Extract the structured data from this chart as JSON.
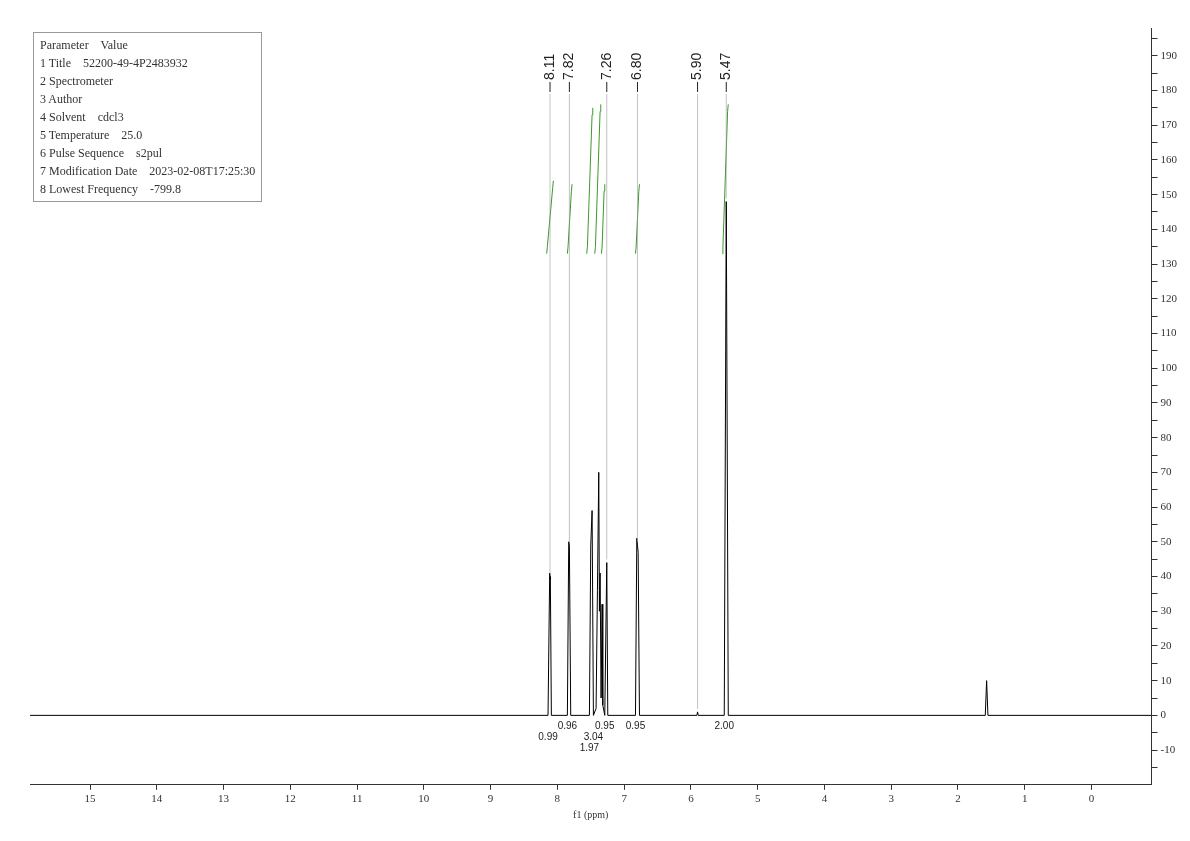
{
  "chart_data": {
    "type": "line",
    "xlabel": "f1 (ppm)",
    "xlim": [
      15.9,
      -0.9
    ],
    "ylim": [
      -20,
      198
    ],
    "xticks": [
      15,
      14,
      13,
      12,
      11,
      10,
      9,
      8,
      7,
      6,
      5,
      4,
      3,
      2,
      1,
      0
    ],
    "yticks": [
      {
        "value": -15,
        "label": null
      },
      -10,
      {
        "value": -5,
        "label": null
      },
      0,
      {
        "value": 5,
        "label": null
      },
      10,
      {
        "value": 15,
        "label": null
      },
      20,
      {
        "value": 25,
        "label": null
      },
      30,
      {
        "value": 35,
        "label": null
      },
      40,
      {
        "value": 45,
        "label": null
      },
      50,
      {
        "value": 55,
        "label": null
      },
      60,
      {
        "value": 65,
        "label": null
      },
      70,
      {
        "value": 75,
        "label": null
      },
      80,
      {
        "value": 85,
        "label": null
      },
      90,
      {
        "value": 95,
        "label": null
      },
      100,
      {
        "value": 105,
        "label": null
      },
      110,
      {
        "value": 115,
        "label": null
      },
      120,
      {
        "value": 125,
        "label": null
      },
      130,
      {
        "value": 135,
        "label": null
      },
      140,
      {
        "value": 145,
        "label": null
      },
      150,
      {
        "value": 155,
        "label": null
      },
      160,
      {
        "value": 165,
        "label": null
      },
      170,
      {
        "value": 175,
        "label": null
      },
      180,
      {
        "value": 185,
        "label": null
      },
      190,
      {
        "value": 195,
        "label": null
      }
    ],
    "grid": false,
    "legend": false,
    "marker": "none",
    "line_style": "solid",
    "series": [
      {
        "color": "#000000",
        "x": [
          15.9,
          8.14,
          8.115,
          8.11,
          8.105,
          8.09,
          7.85,
          7.83,
          7.82,
          7.8,
          7.52,
          7.5,
          7.48,
          7.46,
          7.42,
          7.4,
          7.38,
          7.37,
          7.36,
          7.345,
          7.33,
          7.32,
          7.29,
          7.26,
          7.245,
          6.83,
          6.81,
          6.8,
          6.79,
          6.77,
          5.91,
          5.9,
          5.89,
          5.5,
          5.47,
          5.44,
          1.59,
          1.57,
          1.55,
          -0.9
        ],
        "values": [
          0,
          0,
          41,
          40,
          39,
          0,
          0,
          50,
          49,
          0,
          0,
          49,
          59,
          0,
          2,
          36,
          70,
          30,
          41,
          5,
          32,
          3,
          0,
          44,
          0,
          0,
          51,
          49,
          47,
          0,
          0,
          1,
          0,
          0,
          148,
          0,
          0,
          10,
          0,
          0
        ]
      },
      {
        "color": "#3a9a2a",
        "x": [
          8.16,
          8.15,
          8.07,
          8.06,
          8.0,
          7.85,
          7.84,
          7.79,
          7.78,
          7.7,
          7.56,
          7.55,
          7.48,
          7.47,
          7.45,
          7.44,
          7.43,
          7.36,
          7.35,
          7.345,
          7.34,
          7.33,
          7.3,
          7.29,
          7.0,
          6.83,
          6.82,
          6.78,
          6.77,
          6.0,
          5.53,
          5.52,
          5.45,
          5.44
        ],
        "values": [
          133,
          135,
          152,
          154,
          null,
          133,
          135,
          151,
          153,
          null,
          133,
          135,
          173,
          175,
          null,
          133,
          135,
          174,
          176,
          null,
          133,
          135,
          151,
          153,
          null,
          133,
          135,
          151,
          153,
          null,
          133,
          135,
          174,
          176
        ]
      }
    ],
    "annotations": [
      "Parameter    Value",
      "1 Title    52200-49-4P2483932",
      "2 Spectrometer",
      "3 Author",
      "4 Solvent    cdcl3",
      "5 Temperature    25.0",
      "6 Pulse Sequence    s2pul",
      "7 Modification Date    2023-02-08T17:25:30",
      "8 Lowest Frequency    -799.8",
      {
        "text": "8.11",
        "x": 8.11,
        "y": 40
      },
      {
        "text": "7.82",
        "x": 7.82,
        "y": 49
      },
      {
        "text": "7.26",
        "x": 7.26,
        "y": 44
      },
      {
        "text": "6.80",
        "x": 6.8,
        "y": 49
      },
      {
        "text": "5.90",
        "x": 5.9,
        "y": 1
      },
      {
        "text": "5.47",
        "x": 5.47,
        "y": 148
      },
      {
        "text": "0.99",
        "x": 8.14,
        "y": 0
      },
      {
        "text": "0.96",
        "x": 7.85,
        "y": 0
      },
      {
        "text": "1.97",
        "x": 7.52,
        "y": 0
      },
      {
        "text": "3.04",
        "x": 7.46,
        "y": 0
      },
      {
        "text": "0.95",
        "x": 7.29,
        "y": 0
      },
      {
        "text": "0.95",
        "x": 6.83,
        "y": 0
      },
      {
        "text": "2.00",
        "x": 5.5,
        "y": 0
      }
    ]
  }
}
